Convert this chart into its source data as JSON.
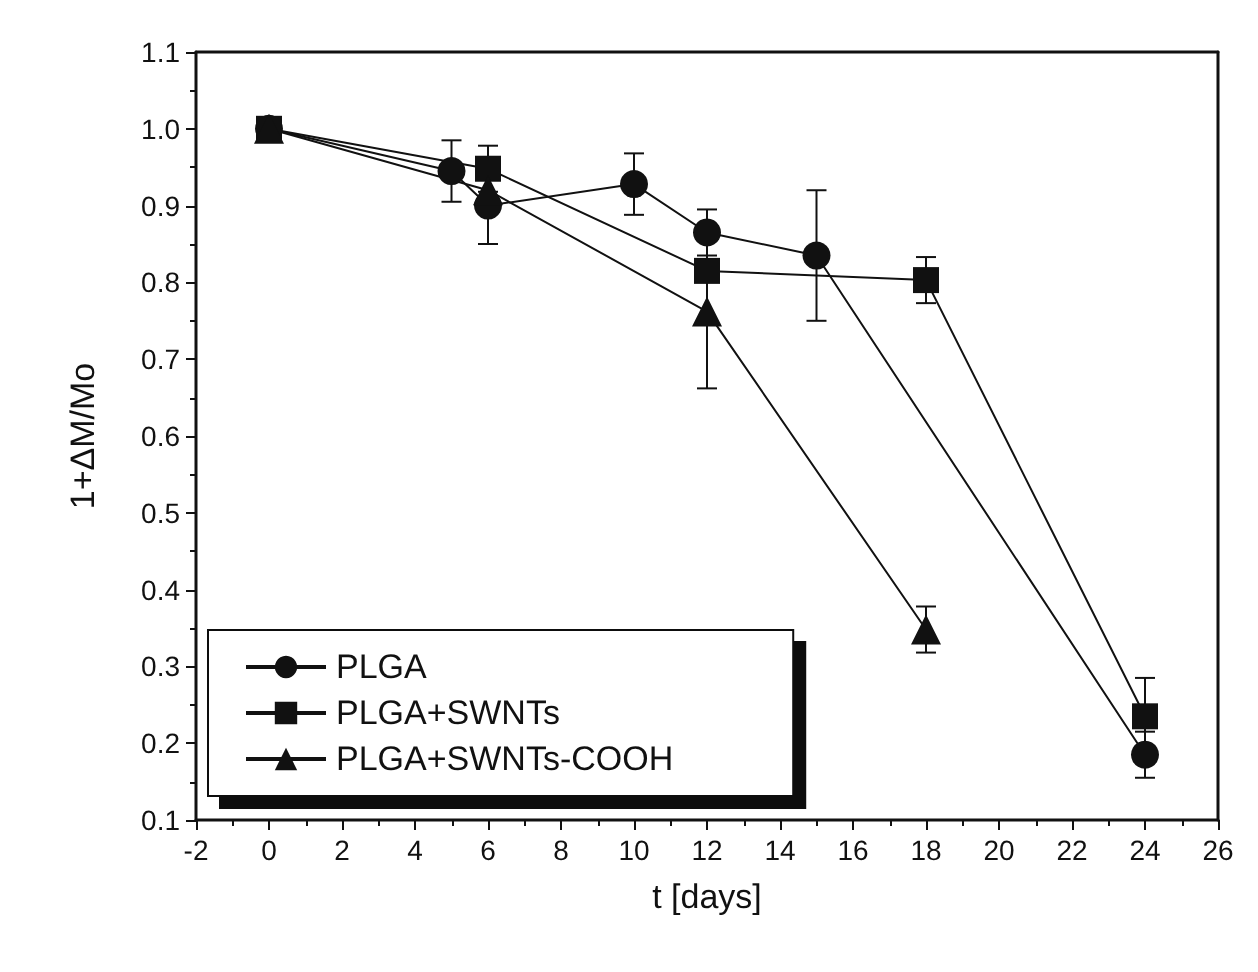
{
  "chart_data": {
    "type": "line",
    "xlabel": "t [days]",
    "ylabel": "1+ΔM/Mo",
    "xlim": [
      -2,
      26
    ],
    "xticks": [
      -2,
      0,
      2,
      4,
      6,
      8,
      10,
      12,
      14,
      16,
      18,
      20,
      22,
      24,
      26
    ],
    "ylim": [
      0.1,
      1.1
    ],
    "yticks": [
      {
        "value": 0.1,
        "label": "0.1"
      },
      {
        "value": 0.2,
        "label": "0.2"
      },
      {
        "value": 0.3,
        "label": "0.3"
      },
      {
        "value": 0.4,
        "label": "0.4"
      },
      {
        "value": 0.5,
        "label": "0.5"
      },
      {
        "value": 0.6,
        "label": "0.6"
      },
      {
        "value": 0.7,
        "label": "0.7"
      },
      {
        "value": 0.8,
        "label": "0.8"
      },
      {
        "value": 0.9,
        "label": "0.9"
      },
      {
        "value": 1,
        "label": "1.0"
      },
      {
        "value": 1.1,
        "label": "1.1"
      }
    ],
    "grid": false,
    "legend": "bottom left",
    "line_style": "solid",
    "series": [
      {
        "name": "PLGA",
        "color": "#111111",
        "marker": "circle",
        "x": [
          0,
          5,
          6,
          10,
          12,
          15,
          24
        ],
        "values": [
          1.0,
          0.945,
          0.9,
          0.928,
          0.865,
          0.835,
          0.185
        ],
        "errors": [
          null,
          0.04,
          0.05,
          0.04,
          0.03,
          0.085,
          0.03
        ]
      },
      {
        "name": "PLGA+SWNTs",
        "color": "#111111",
        "marker": "square",
        "x": [
          0,
          6,
          12,
          18,
          24
        ],
        "values": [
          1.0,
          0.948,
          0.815,
          0.803,
          0.235
        ],
        "errors": [
          null,
          0.03,
          null,
          0.03,
          0.05
        ]
      },
      {
        "name": "PLGA+SWNTs-COOH",
        "color": "#111111",
        "marker": "triangle",
        "x": [
          0,
          6,
          12,
          18
        ],
        "values": [
          1.0,
          0.92,
          0.762,
          0.348
        ],
        "errors": [
          null,
          null,
          0.1,
          0.03
        ]
      }
    ]
  }
}
